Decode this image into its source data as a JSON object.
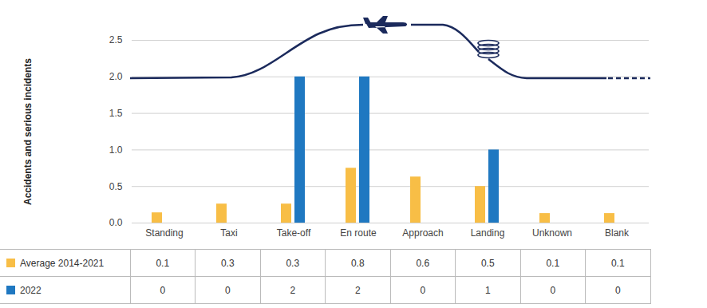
{
  "chart_data": {
    "type": "bar",
    "ylabel": "Accidents and serious incidents",
    "categories": [
      "Standing",
      "Taxi",
      "Take-off",
      "En route",
      "Approach",
      "Landing",
      "Unknown",
      "Blank"
    ],
    "series": [
      {
        "name": "Average 2014-2021",
        "color": "#F8BE46",
        "values": [
          0.14,
          0.26,
          0.26,
          0.75,
          0.63,
          0.5,
          0.13,
          0.13
        ],
        "value_labels": [
          "0.1",
          "0.3",
          "0.3",
          "0.8",
          "0.6",
          "0.5",
          "0.1",
          "0.1"
        ]
      },
      {
        "name": "2022",
        "color": "#1F78C1",
        "values": [
          0,
          0,
          2,
          2,
          0,
          1,
          0,
          0
        ]
      }
    ],
    "ylim": [
      0,
      2.5
    ],
    "yticks": [
      {
        "value": 0,
        "label": "0.0"
      },
      {
        "value": 0.5,
        "label": "0.5"
      },
      {
        "value": 1,
        "label": "1.0"
      },
      {
        "value": 1.5,
        "label": "1.5"
      },
      {
        "value": 2,
        "label": "2.0"
      },
      {
        "value": 2.5,
        "label": "2.5"
      }
    ],
    "grid": true,
    "legend": "bottom"
  }
}
